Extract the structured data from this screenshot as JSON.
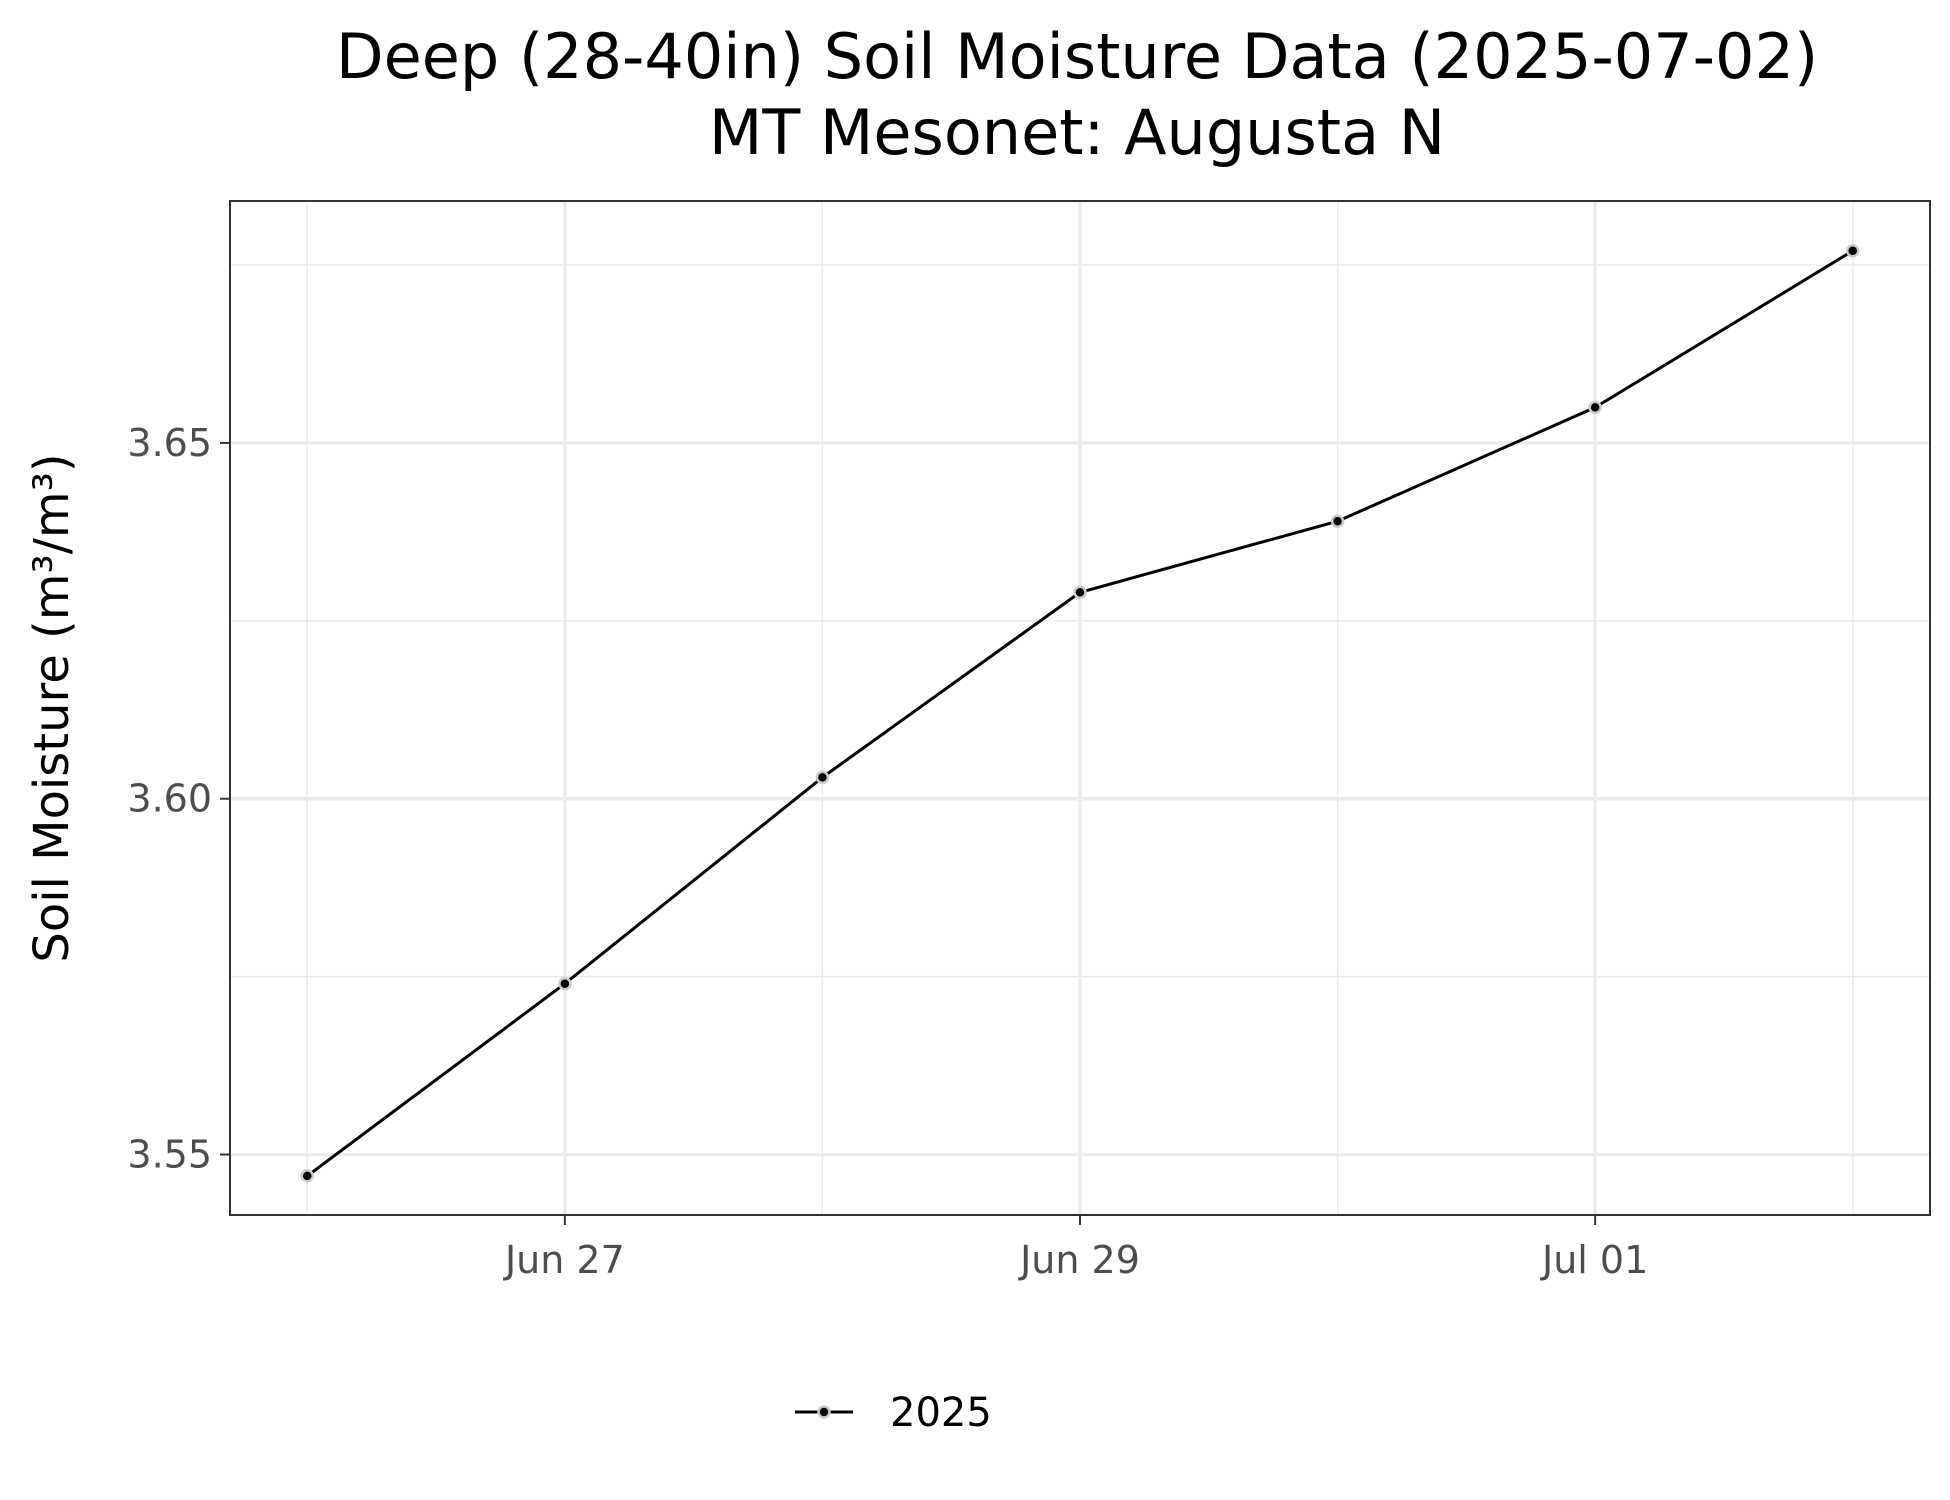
{
  "chart_data": {
    "type": "line",
    "title": "Deep (28-40in) Soil Moisture Data (2025-07-02)",
    "subtitle": "MT Mesonet: Augusta N",
    "ylabel": "Soil Moisture (m³/m³)",
    "xlabel": "",
    "x_ticks": [
      {
        "date": "2025-06-27",
        "label": "Jun 27"
      },
      {
        "date": "2025-06-29",
        "label": "Jun 29"
      },
      {
        "date": "2025-07-01",
        "label": "Jul 01"
      }
    ],
    "y_ticks": [
      {
        "value": 3.55,
        "label": "3.55"
      },
      {
        "value": 3.6,
        "label": "3.60"
      },
      {
        "value": 3.65,
        "label": "3.65"
      }
    ],
    "xlim": [
      "2025-06-25T16:48",
      "2025-07-02T07:12"
    ],
    "ylim": [
      3.5415,
      3.684
    ],
    "grid": true,
    "legend_position": "bottom",
    "series": [
      {
        "name": "2025",
        "color": "#000000",
        "x": [
          "2025-06-26",
          "2025-06-27",
          "2025-06-28",
          "2025-06-29",
          "2025-06-30",
          "2025-07-01",
          "2025-07-02"
        ],
        "values": [
          3.547,
          3.574,
          3.603,
          3.629,
          3.639,
          3.655,
          3.677
        ]
      }
    ]
  }
}
